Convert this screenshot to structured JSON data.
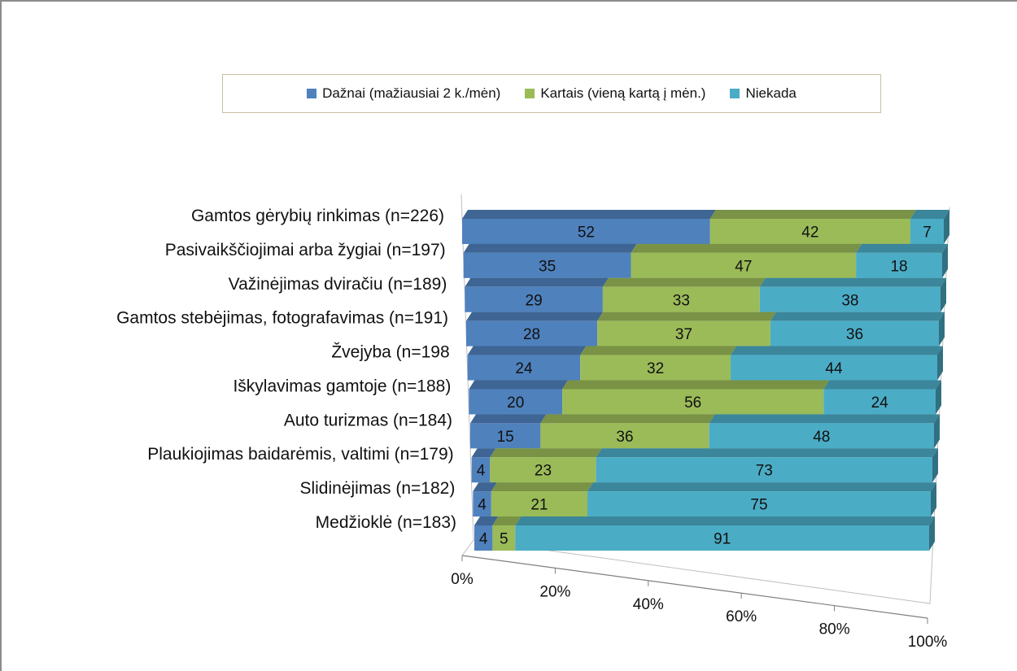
{
  "chart_data": {
    "type": "bar",
    "orientation": "horizontal",
    "stacked": true,
    "percent_stacked": true,
    "three_d": true,
    "legend_position": "top",
    "categories": [
      "Gamtos gėrybių rinkimas (n=226)",
      "Pasivaikščiojimai arba žygiai (n=197)",
      "Važinėjimas dviračiu (n=189)",
      "Gamtos stebėjimas, fotografavimas (n=191)",
      "Žvejyba (n=198",
      "Iškylavimas gamtoje (n=188)",
      "Auto turizmas  (n=184)",
      "Plaukiojimas baidarėmis, valtimi (n=179)",
      "Slidinėjimas (n=182)",
      "Medžioklė (n=183)"
    ],
    "series": [
      {
        "name": "Dažnai (mažiausiai 2 k./mėn)",
        "color": "#4f81bd",
        "values": [
          52,
          35,
          29,
          28,
          24,
          20,
          15,
          4,
          4,
          4
        ]
      },
      {
        "name": "Kartais  (vieną kartą į mėn.)",
        "color": "#9bbb59",
        "values": [
          42,
          47,
          33,
          37,
          32,
          56,
          36,
          23,
          21,
          5
        ]
      },
      {
        "name": "Niekada",
        "color": "#4bacc6",
        "values": [
          7,
          18,
          38,
          36,
          44,
          24,
          48,
          73,
          75,
          91
        ]
      }
    ],
    "x_ticks": [
      "0%",
      "20%",
      "40%",
      "60%",
      "80%",
      "100%"
    ],
    "xlim": [
      0,
      100
    ],
    "grid": false
  }
}
